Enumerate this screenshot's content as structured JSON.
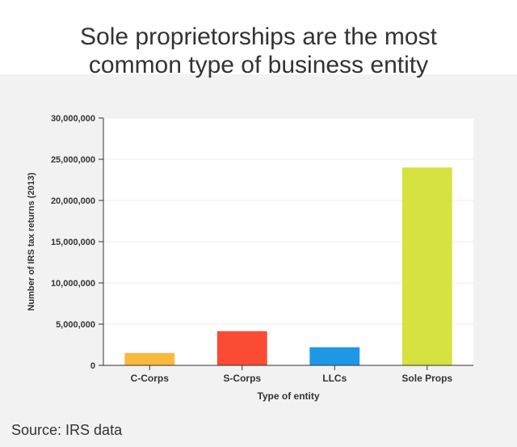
{
  "title": {
    "line1": "Sole proprietorships are the most",
    "line2": "common type of business entity"
  },
  "source": "Source: IRS data",
  "colors": {
    "background": "#f2f2f2",
    "plot_background": "#ffffff",
    "grid": "#ececec",
    "axis": "#333333"
  },
  "chart_data": {
    "type": "bar",
    "categories": [
      "C-Corps",
      "S-Corps",
      "LLCs",
      "Sole Props"
    ],
    "values": [
      1500000,
      4150000,
      2200000,
      24000000
    ],
    "bar_colors": [
      "#f9b93c",
      "#fb4b34",
      "#1e98e6",
      "#d6e23f"
    ],
    "xlabel": "Type of entity",
    "ylabel": "Number of IRS tax returns (2013)",
    "ylim": [
      0,
      30000000
    ],
    "yticks": [
      0,
      5000000,
      10000000,
      15000000,
      20000000,
      25000000,
      30000000
    ],
    "ytick_labels": [
      "0",
      "5,000,000",
      "10,000,000",
      "15,000,000",
      "20,000,000",
      "25,000,000",
      "30,000,000"
    ],
    "grid": true,
    "legend": "none"
  }
}
